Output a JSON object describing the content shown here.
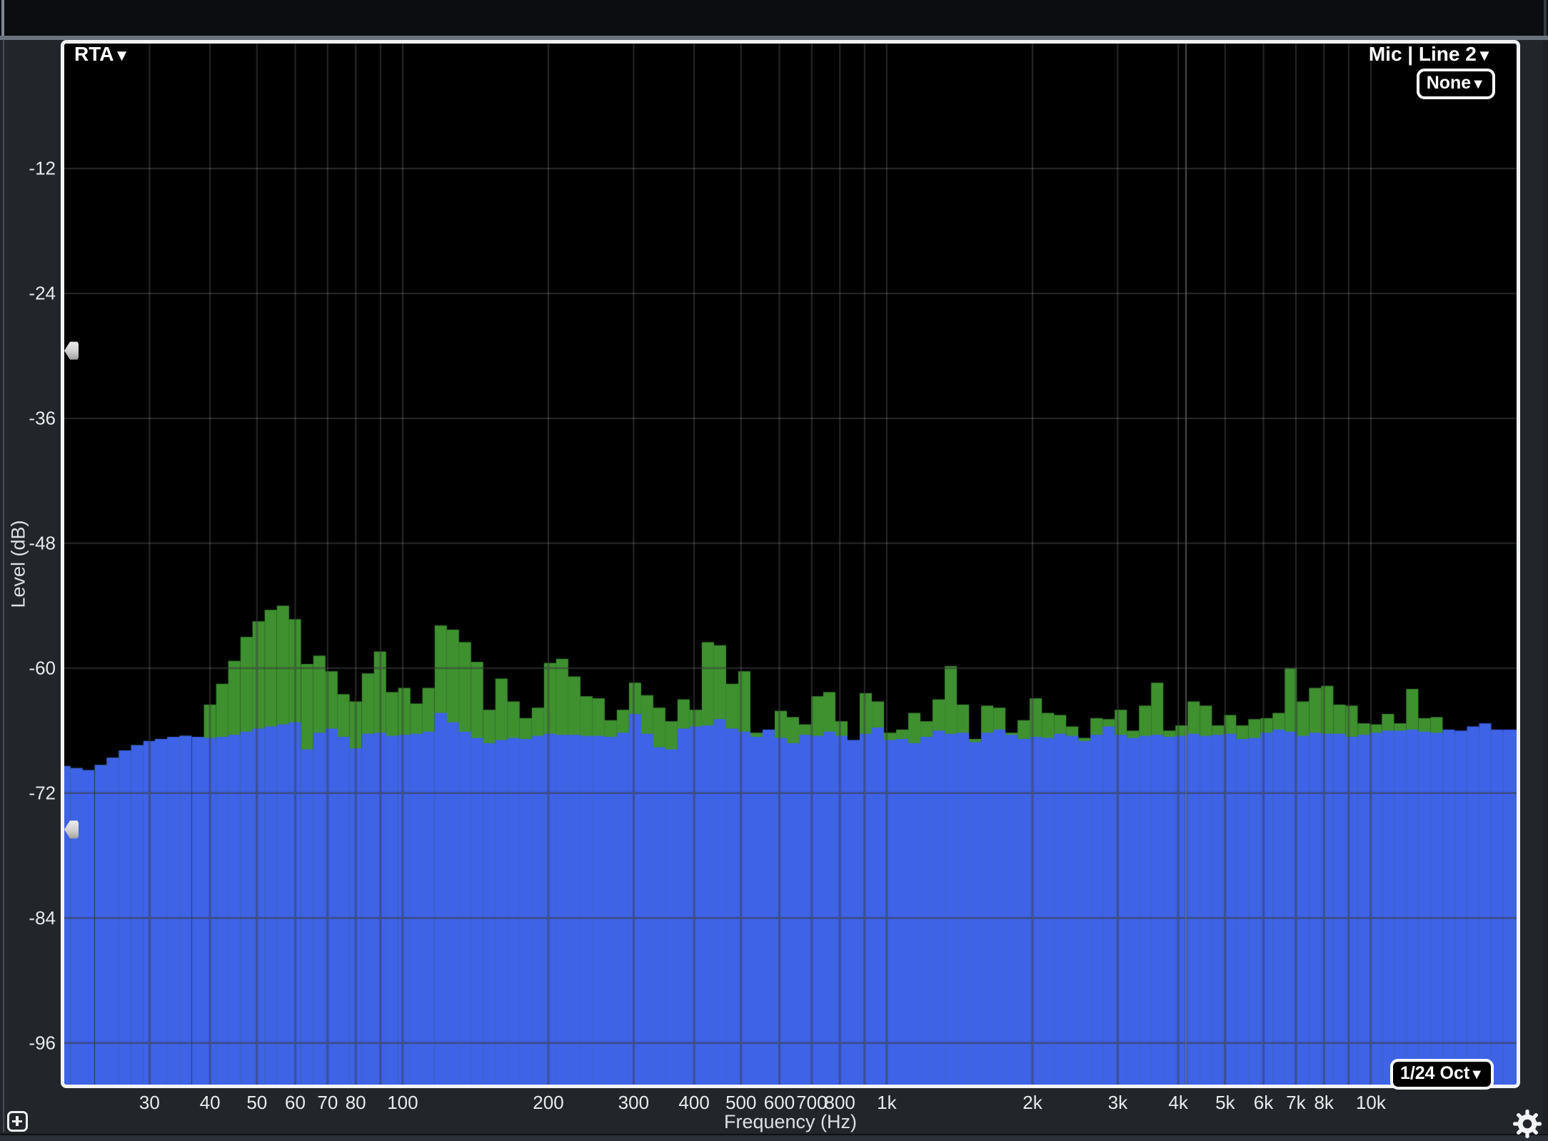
{
  "selectors": {
    "mode": {
      "label": "RTA"
    },
    "input": {
      "label": "Mic | Line 2"
    },
    "overlay": {
      "label": "None"
    },
    "resolution": {
      "label": "1/24 Oct"
    }
  },
  "icons": {
    "caret": "▼",
    "add": "plus-icon",
    "settings": "gear-icon"
  },
  "axis": {
    "x_title": "Frequency (Hz)",
    "y_title": "Level (dB)"
  },
  "handles": {
    "upper_db": -29.5,
    "lower_db": -75.5
  },
  "colors": {
    "background_outer": "#22262b",
    "top_bar": "#0b0d10",
    "separator": "#69727d",
    "plot_background": "#000000",
    "plot_border": "#f2f3f5",
    "grid_shade": "rgba(0,0,0,0.5)",
    "grid_light": "rgba(255,255,255,0.16)",
    "marker_line": "rgba(255,255,255,0.30)",
    "rta_fill": "#3e63e7",
    "peak_fill": "#3f9130",
    "text": "#e8eaec",
    "handle": "#d9dadb"
  },
  "chart_data": {
    "type": "bar",
    "subtype": "rta-spectrum",
    "x_scale": "log",
    "f_min": 20,
    "f_max": 20000,
    "ylim": [
      -100,
      0
    ],
    "bands_per_octave": 12,
    "title": "",
    "xlabel": "Frequency (Hz)",
    "ylabel": "Level (dB)",
    "freqs": [
      20,
      21.2,
      22.4,
      23.8,
      25.2,
      26.7,
      28.3,
      30,
      31.7,
      33.6,
      35.6,
      37.8,
      40,
      42.4,
      44.9,
      47.6,
      50.4,
      53.4,
      56.6,
      59.9,
      63.5,
      67.3,
      71.3,
      75.5,
      80,
      84.8,
      89.8,
      95.1,
      100.8,
      106.8,
      113.1,
      119.9,
      127,
      134.5,
      142.5,
      151,
      160,
      169.5,
      179.6,
      190.3,
      201.6,
      213.6,
      226.3,
      239.7,
      254,
      269.1,
      285.1,
      302.1,
      320,
      339,
      359.2,
      380.5,
      403.2,
      427.1,
      452.5,
      479.4,
      508,
      538.2,
      570.2,
      604.1,
      640,
      678.1,
      718.4,
      761.1,
      806.3,
      854.3,
      905.1,
      958.9,
      1015.9,
      1076.3,
      1140.3,
      1208.1,
      1280,
      1356.1,
      1436.8,
      1522.2,
      1612.7,
      1708.6,
      1810.2,
      1917.9,
      2032,
      2152.8,
      2280.9,
      2416.5,
      2560,
      2712.2,
      2873.5,
      3044.4,
      3225.4,
      3417.2,
      3620.4,
      3835.7,
      4063.9,
      4305.6,
      4561.6,
      4832.9,
      5120,
      5424.5,
      5747,
      6088.8,
      6450.8,
      6834.4,
      7240.8,
      7671.4,
      8127.6,
      8611,
      9123,
      9665.5,
      10240,
      10848.9,
      11494.1,
      12177.6,
      12901.7,
      13668.9,
      14481.7,
      15342.7,
      16255.1,
      17221.7,
      18245.9,
      19331
    ],
    "series": [
      {
        "name": "peak-hold",
        "color_key": "peak_fill",
        "db": [
          -69.4,
          -69.6,
          -69.8,
          -69.3,
          -68.6,
          -67.9,
          -67.4,
          -67.0,
          -66.8,
          -66.6,
          -66.5,
          -66.6,
          -63.5,
          -61.5,
          -59.3,
          -57.0,
          -55.5,
          -54.4,
          -54.0,
          -55.3,
          -59.6,
          -58.8,
          -60.3,
          -62.5,
          -63.2,
          -60.5,
          -58.4,
          -62.3,
          -61.9,
          -63.4,
          -61.9,
          -55.9,
          -56.3,
          -57.5,
          -59.4,
          -64.0,
          -61.0,
          -63.2,
          -64.8,
          -63.8,
          -59.5,
          -59.1,
          -60.8,
          -62.7,
          -62.9,
          -65.0,
          -64.0,
          -61.4,
          -62.6,
          -63.8,
          -65.1,
          -63.0,
          -64.0,
          -57.5,
          -57.8,
          -61.5,
          -60.3,
          -66.2,
          -66.2,
          -64.1,
          -64.7,
          -65.4,
          -62.7,
          -62.3,
          -65.1,
          -67.0,
          -62.4,
          -63.2,
          -66.2,
          -65.9,
          -64.3,
          -65.1,
          -63.0,
          -59.8,
          -63.5,
          -66.8,
          -63.6,
          -63.8,
          -66.2,
          -65.0,
          -62.9,
          -64.3,
          -64.5,
          -65.6,
          -66.7,
          -64.8,
          -64.9,
          -64.0,
          -66.0,
          -63.6,
          -61.4,
          -66.0,
          -65.5,
          -63.2,
          -63.6,
          -65.5,
          -64.5,
          -65.5,
          -64.9,
          -64.8,
          -64.3,
          -60.0,
          -63.2,
          -61.9,
          -61.7,
          -63.5,
          -63.6,
          -65.3,
          -65.4,
          -64.4,
          -65.3,
          -62.0,
          -64.8,
          -64.7,
          -66.3,
          -66.3,
          -66.0,
          -65.8,
          -66.2,
          -66.2
        ]
      },
      {
        "name": "rta-current",
        "color_key": "rta_fill",
        "db": [
          -69.4,
          -69.6,
          -69.8,
          -69.3,
          -68.6,
          -67.9,
          -67.4,
          -67.0,
          -66.8,
          -66.6,
          -66.5,
          -66.6,
          -66.7,
          -66.6,
          -66.4,
          -66.1,
          -65.8,
          -65.6,
          -65.4,
          -65.2,
          -67.8,
          -66.2,
          -65.8,
          -66.6,
          -67.7,
          -66.3,
          -66.2,
          -66.5,
          -66.4,
          -66.3,
          -66.1,
          -64.3,
          -65.2,
          -66.1,
          -66.7,
          -67.2,
          -66.9,
          -66.7,
          -66.8,
          -66.5,
          -66.3,
          -66.4,
          -66.4,
          -66.5,
          -66.5,
          -66.6,
          -66.2,
          -64.4,
          -66.3,
          -67.6,
          -67.8,
          -65.8,
          -65.6,
          -65.5,
          -64.9,
          -65.8,
          -66.1,
          -66.6,
          -65.9,
          -66.7,
          -67.2,
          -66.4,
          -66.5,
          -66.1,
          -66.5,
          -66.9,
          -66.3,
          -65.7,
          -66.9,
          -66.8,
          -67.2,
          -66.6,
          -66.0,
          -66.3,
          -66.2,
          -67.1,
          -66.2,
          -65.9,
          -66.4,
          -66.8,
          -66.6,
          -66.7,
          -66.3,
          -66.5,
          -67.0,
          -66.4,
          -65.6,
          -66.4,
          -66.7,
          -66.5,
          -66.4,
          -66.6,
          -66.5,
          -66.3,
          -66.5,
          -66.4,
          -66.3,
          -66.8,
          -66.7,
          -66.2,
          -65.9,
          -66.1,
          -66.5,
          -66.2,
          -66.3,
          -66.3,
          -66.6,
          -66.4,
          -66.2,
          -66.0,
          -66.0,
          -65.9,
          -66.1,
          -66.2,
          -65.9,
          -66.0,
          -65.6,
          -65.3,
          -65.9,
          -65.9
        ]
      }
    ],
    "grid": {
      "x_lines_hz": [
        30,
        40,
        50,
        60,
        70,
        80,
        90,
        100,
        200,
        300,
        400,
        500,
        600,
        700,
        800,
        900,
        1000,
        2000,
        3000,
        4000,
        5000,
        6000,
        7000,
        8000,
        9000,
        10000
      ],
      "y_lines_db": [
        -12,
        -24,
        -36,
        -48,
        -60,
        -72,
        -84,
        -96
      ],
      "marker_line_hz": 4150
    },
    "x_ticks": [
      {
        "hz": 30,
        "label": "30"
      },
      {
        "hz": 40,
        "label": "40"
      },
      {
        "hz": 50,
        "label": "50"
      },
      {
        "hz": 60,
        "label": "60"
      },
      {
        "hz": 70,
        "label": "70"
      },
      {
        "hz": 80,
        "label": "80"
      },
      {
        "hz": 100,
        "label": "100"
      },
      {
        "hz": 200,
        "label": "200"
      },
      {
        "hz": 300,
        "label": "300"
      },
      {
        "hz": 400,
        "label": "400"
      },
      {
        "hz": 500,
        "label": "500"
      },
      {
        "hz": 600,
        "label": "600"
      },
      {
        "hz": 700,
        "label": "700"
      },
      {
        "hz": 800,
        "label": "800"
      },
      {
        "hz": 1000,
        "label": "1k"
      },
      {
        "hz": 2000,
        "label": "2k"
      },
      {
        "hz": 3000,
        "label": "3k"
      },
      {
        "hz": 4000,
        "label": "4k"
      },
      {
        "hz": 5000,
        "label": "5k"
      },
      {
        "hz": 6000,
        "label": "6k"
      },
      {
        "hz": 7000,
        "label": "7k"
      },
      {
        "hz": 8000,
        "label": "8k"
      },
      {
        "hz": 10000,
        "label": "10k"
      }
    ],
    "y_ticks": [
      {
        "db": -12,
        "label": "-12"
      },
      {
        "db": -24,
        "label": "-24"
      },
      {
        "db": -36,
        "label": "-36"
      },
      {
        "db": -48,
        "label": "-48"
      },
      {
        "db": -60,
        "label": "-60"
      },
      {
        "db": -72,
        "label": "-72"
      },
      {
        "db": -84,
        "label": "-84"
      },
      {
        "db": -96,
        "label": "-96"
      }
    ],
    "legend": "off"
  }
}
